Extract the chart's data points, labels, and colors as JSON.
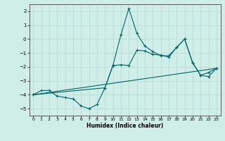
{
  "xlabel": "Humidex (Indice chaleur)",
  "ylabel": "",
  "xlim": [
    -0.5,
    23.5
  ],
  "ylim": [
    -5.5,
    2.5
  ],
  "yticks": [
    -5,
    -4,
    -3,
    -2,
    -1,
    0,
    1,
    2
  ],
  "xticks": [
    0,
    1,
    2,
    3,
    4,
    5,
    6,
    7,
    8,
    9,
    10,
    11,
    12,
    13,
    14,
    15,
    16,
    17,
    18,
    19,
    20,
    21,
    22,
    23
  ],
  "background_color": "#d0eee8",
  "grid_color": "#b8ddd6",
  "line_color": "#006666",
  "line1_x": [
    0,
    1,
    2,
    3,
    4,
    5,
    6,
    7,
    8,
    9,
    10,
    11,
    12,
    13,
    14,
    15,
    16,
    17,
    18,
    19,
    20,
    21,
    22,
    23
  ],
  "line1_y": [
    -4.0,
    -3.7,
    -3.7,
    -4.1,
    -4.2,
    -4.3,
    -4.8,
    -5.0,
    -4.7,
    -3.5,
    -1.9,
    0.3,
    2.2,
    0.4,
    -0.5,
    -0.9,
    -1.2,
    -1.2,
    -0.6,
    0.0,
    -1.7,
    -2.6,
    -2.4,
    -2.1
  ],
  "line2_x": [
    0,
    9,
    10,
    11,
    12,
    13,
    14,
    15,
    16,
    17,
    18,
    19,
    20,
    21,
    22,
    23
  ],
  "line2_y": [
    -4.0,
    -3.5,
    -1.9,
    -1.85,
    -1.9,
    -0.8,
    -0.85,
    -1.1,
    -1.15,
    -1.3,
    -0.6,
    0.0,
    -1.7,
    -2.6,
    -2.7,
    -2.1
  ],
  "line3_x": [
    0,
    23
  ],
  "line3_y": [
    -4.0,
    -2.1
  ],
  "xlabel_fontsize": 5.5,
  "xlabel_fontweight": "bold",
  "tick_fontsize": 4.5,
  "ytick_fontsize": 5.0
}
